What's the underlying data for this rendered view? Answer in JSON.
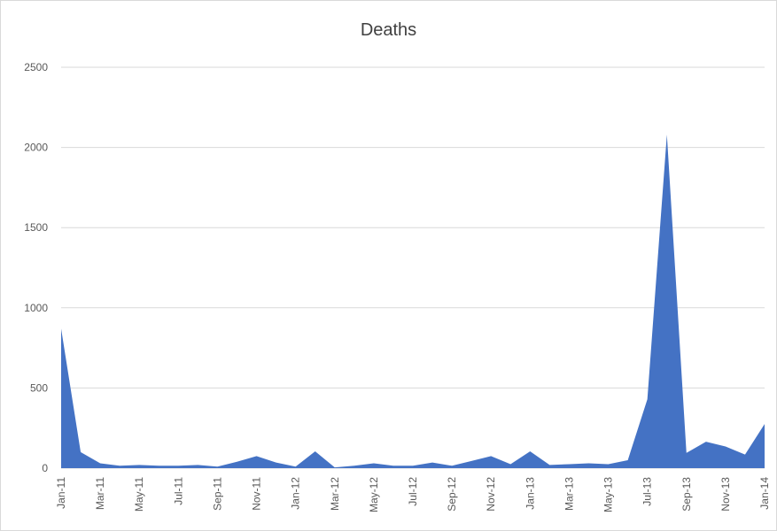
{
  "chart_data": {
    "type": "area",
    "title": "Deaths",
    "xlabel": "",
    "ylabel": "",
    "ylim": [
      0,
      2500
    ],
    "yticks": [
      0,
      500,
      1000,
      1500,
      2000,
      2500
    ],
    "grid": true,
    "legend": "none",
    "color": "#4472c4",
    "x": [
      "Jan-11",
      "Feb-11",
      "Mar-11",
      "Apr-11",
      "May-11",
      "Jun-11",
      "Jul-11",
      "Aug-11",
      "Sep-11",
      "Oct-11",
      "Nov-11",
      "Dec-11",
      "Jan-12",
      "Feb-12",
      "Mar-12",
      "Apr-12",
      "May-12",
      "Jun-12",
      "Jul-12",
      "Aug-12",
      "Sep-12",
      "Oct-12",
      "Nov-12",
      "Dec-12",
      "Jan-13",
      "Feb-13",
      "Mar-13",
      "Apr-13",
      "May-13",
      "Jun-13",
      "Jul-13",
      "Aug-13",
      "Sep-13",
      "Oct-13",
      "Nov-13",
      "Dec-13",
      "Jan-14"
    ],
    "xticklabels": [
      "Jan-11",
      "Mar-11",
      "May-11",
      "Jul-11",
      "Sep-11",
      "Nov-11",
      "Jan-12",
      "Mar-12",
      "May-12",
      "Jul-12",
      "Sep-12",
      "Nov-12",
      "Jan-13",
      "Mar-13",
      "May-13",
      "Jul-13",
      "Sep-13",
      "Nov-13",
      "Jan-14"
    ],
    "series": [
      {
        "values": [
          870,
          100,
          30,
          15,
          20,
          15,
          15,
          20,
          10,
          40,
          75,
          35,
          10,
          105,
          5,
          15,
          30,
          15,
          15,
          35,
          15,
          45,
          75,
          25,
          105,
          20,
          25,
          30,
          25,
          50,
          430,
          2080,
          95,
          165,
          135,
          85,
          275
        ]
      }
    ]
  }
}
